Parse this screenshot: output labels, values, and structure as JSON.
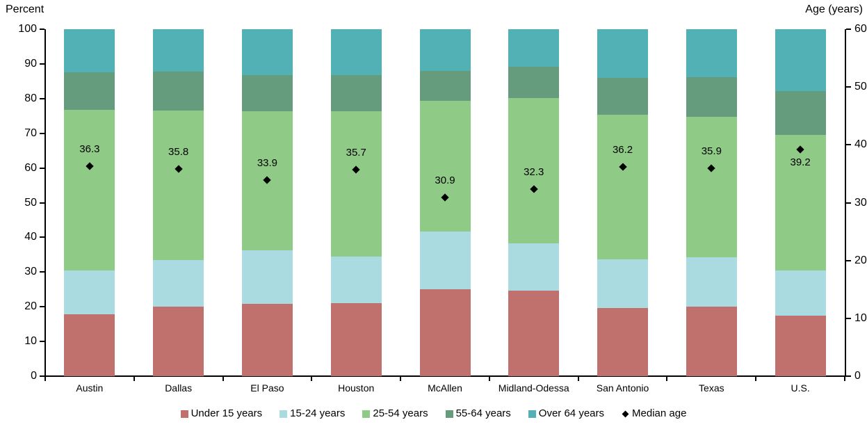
{
  "chart_data": {
    "type": "bar",
    "stacked": true,
    "orientation": "vertical",
    "grid": false,
    "title": "",
    "categories": [
      "Austin",
      "Dallas",
      "El Paso",
      "Houston",
      "McAllen",
      "Midland-Odessa",
      "San Antonio",
      "Texas",
      "U.S."
    ],
    "series": [
      {
        "name": "Under 15 years",
        "color": "#c0716d",
        "values": [
          17.8,
          20.0,
          20.8,
          21.0,
          25.1,
          24.6,
          19.6,
          20.0,
          17.5
        ]
      },
      {
        "name": "15-24 years",
        "color": "#a9dbe0",
        "values": [
          12.7,
          13.4,
          15.4,
          13.5,
          16.6,
          13.6,
          14.1,
          14.2,
          13.0
        ]
      },
      {
        "name": "25-54 years",
        "color": "#8fca86",
        "values": [
          46.2,
          43.1,
          40.2,
          41.8,
          37.6,
          41.9,
          41.6,
          40.6,
          39.0
        ]
      },
      {
        "name": "55-64 years",
        "color": "#669c7e",
        "values": [
          10.9,
          11.3,
          10.3,
          10.4,
          8.6,
          9.0,
          10.6,
          11.4,
          12.6
        ]
      },
      {
        "name": "Over 64 years",
        "color": "#52b1b5",
        "values": [
          12.4,
          12.2,
          13.3,
          13.3,
          12.1,
          10.9,
          14.1,
          13.8,
          17.9
        ]
      }
    ],
    "overlay": {
      "name": "Median age",
      "type": "scatter",
      "marker": "diamond",
      "color": "#000000",
      "axis": "right",
      "values": [
        36.3,
        35.8,
        33.9,
        35.7,
        30.9,
        32.3,
        36.2,
        35.9,
        39.2
      ],
      "labels": [
        "36.3",
        "35.8",
        "33.9",
        "35.7",
        "30.9",
        "32.3",
        "36.2",
        "35.9",
        "39.2"
      ],
      "label_placement": [
        "above",
        "above",
        "above",
        "above",
        "above",
        "above",
        "above",
        "above",
        "below"
      ]
    },
    "left_axis": {
      "title": "Percent",
      "min": 0,
      "max": 100,
      "ticks": [
        0,
        10,
        20,
        30,
        40,
        50,
        60,
        70,
        80,
        90,
        100
      ]
    },
    "right_axis": {
      "title": "Age (years)",
      "min": 0,
      "max": 60,
      "ticks": [
        0,
        10,
        20,
        30,
        40,
        50,
        60
      ]
    },
    "legend": [
      "Under 15 years",
      "15-24 years",
      "25-54 years",
      "55-64 years",
      "Over 64 years",
      "Median age"
    ],
    "legend_position": "bottom"
  }
}
